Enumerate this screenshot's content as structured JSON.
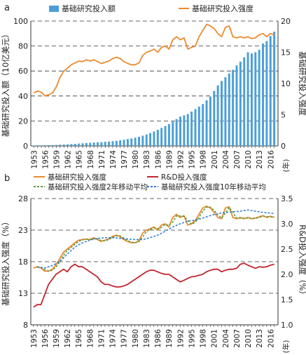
{
  "chart_data": [
    {
      "panel": "a",
      "type": "bar+line",
      "x_label": "(年)",
      "y_left_label": "基础研究投入额（10亿美元）",
      "y_right_label": "基础研究投入强度",
      "y_left_range": [
        0,
        100
      ],
      "y_left_ticks": [
        0,
        20,
        40,
        60,
        80,
        100
      ],
      "y_right_range": [
        0,
        20
      ],
      "y_right_ticks": [
        0,
        5,
        10,
        15,
        20
      ],
      "x_ticks": [
        "1953",
        "1956",
        "1959",
        "1962",
        "1965",
        "1968",
        "1971",
        "1974",
        "1977",
        "1980",
        "1983",
        "1986",
        "1989",
        "1992",
        "1995",
        "1998",
        "2001",
        "2004",
        "2007",
        "2010",
        "2013",
        "2016"
      ],
      "grid": "horizontal dashed",
      "legend_position": "top",
      "legend": [
        "基础研究投入额",
        "基础研究投入强度"
      ],
      "colors": {
        "bars": "#4a9fd8",
        "line": "#ec8a2e"
      },
      "series": [
        {
          "name": "基础研究投入额",
          "kind": "bar",
          "axis": "left",
          "x": [
            1953,
            1954,
            1955,
            1956,
            1957,
            1958,
            1959,
            1960,
            1961,
            1962,
            1963,
            1964,
            1965,
            1966,
            1967,
            1968,
            1969,
            1970,
            1971,
            1972,
            1973,
            1974,
            1975,
            1976,
            1977,
            1978,
            1979,
            1980,
            1981,
            1982,
            1983,
            1984,
            1985,
            1986,
            1987,
            1988,
            1989,
            1990,
            1991,
            1992,
            1993,
            1994,
            1995,
            1996,
            1997,
            1998,
            1999,
            2000,
            2001,
            2002,
            2003,
            2004,
            2005,
            2006,
            2007,
            2008,
            2009,
            2010,
            2011,
            2012,
            2013,
            2014,
            2015,
            2016,
            2017
          ],
          "values": [
            0.3,
            0.4,
            0.4,
            0.5,
            0.6,
            0.7,
            0.8,
            1.0,
            1.1,
            1.3,
            1.5,
            1.7,
            1.9,
            2.1,
            2.3,
            2.5,
            2.7,
            2.9,
            3.0,
            3.3,
            3.5,
            3.8,
            4.1,
            4.5,
            4.9,
            5.5,
            6.0,
            6.6,
            7.3,
            8.2,
            9.2,
            10.3,
            11.5,
            12.9,
            14.4,
            15.9,
            17.5,
            19.5,
            21.5,
            23.5,
            24.5,
            25.5,
            27.5,
            29.5,
            31.5,
            33.5,
            36.5,
            39.5,
            44.0,
            48.5,
            52.0,
            55.0,
            58.0,
            61.0,
            64.5,
            67.5,
            71.0,
            75.0,
            74.0,
            75.0,
            77.0,
            82.0,
            84.0,
            88.0,
            91.5
          ]
        },
        {
          "name": "基础研究投入强度",
          "kind": "line",
          "axis": "right",
          "x": [
            1953,
            1954,
            1955,
            1956,
            1957,
            1958,
            1959,
            1960,
            1961,
            1962,
            1963,
            1964,
            1965,
            1966,
            1967,
            1968,
            1969,
            1970,
            1971,
            1972,
            1973,
            1974,
            1975,
            1976,
            1977,
            1978,
            1979,
            1980,
            1981,
            1982,
            1983,
            1984,
            1985,
            1986,
            1987,
            1988,
            1989,
            1990,
            1991,
            1992,
            1993,
            1994,
            1995,
            1996,
            1997,
            1998,
            1999,
            2000,
            2001,
            2002,
            2003,
            2004,
            2005,
            2006,
            2007,
            2008,
            2009,
            2010,
            2011,
            2012,
            2013,
            2014,
            2015,
            2016,
            2017
          ],
          "values": [
            8.5,
            8.8,
            8.6,
            8.0,
            8.2,
            8.5,
            9.5,
            11.0,
            12.0,
            12.5,
            13.0,
            13.3,
            13.6,
            13.5,
            13.8,
            13.6,
            13.8,
            13.5,
            13.2,
            13.4,
            13.6,
            14.0,
            14.2,
            14.0,
            13.5,
            13.2,
            13.0,
            13.0,
            13.3,
            14.5,
            15.0,
            15.2,
            15.5,
            15.0,
            15.8,
            16.0,
            15.5,
            17.0,
            17.5,
            17.0,
            17.3,
            15.5,
            15.8,
            16.0,
            17.5,
            18.5,
            19.5,
            19.2,
            18.8,
            18.0,
            17.5,
            19.0,
            19.2,
            17.5,
            17.3,
            17.5,
            17.3,
            17.5,
            17.2,
            17.3,
            17.8,
            18.0,
            17.5,
            18.0,
            17.8
          ]
        }
      ]
    },
    {
      "panel": "b",
      "type": "line",
      "x_label": "(年)",
      "y_left_label": "基础研究投入强度（%）",
      "y_right_label": "R&D投入强度（%）",
      "y_left_range": [
        8,
        28
      ],
      "y_left_ticks": [
        8,
        13,
        18,
        23,
        28
      ],
      "y_right_range": [
        1.0,
        3.5
      ],
      "y_right_ticks": [
        1.0,
        1.5,
        2.0,
        2.5,
        3.0,
        3.5
      ],
      "x_ticks": [
        "1953",
        "1956",
        "1959",
        "1962",
        "1965",
        "1968",
        "1971",
        "1974",
        "1977",
        "1980",
        "1983",
        "1986",
        "1989",
        "1992",
        "1995",
        "1998",
        "2001",
        "2004",
        "2007",
        "2010",
        "2013",
        "2016"
      ],
      "grid": "horizontal dashed",
      "legend_position": "top",
      "legend": [
        "基础研究投入强度",
        "R&D投入强度",
        "基础研究投入强度2年移动平均",
        "基础研究投入强度10年移动平均"
      ],
      "colors": {
        "intensity": "#ec8a2e",
        "rd": "#c0262d",
        "ma2": "#5b9a3a",
        "ma10": "#2f7bd0"
      },
      "series": [
        {
          "name": "基础研究投入强度",
          "axis": "left",
          "x": [
            1953,
            1954,
            1955,
            1956,
            1957,
            1958,
            1959,
            1960,
            1961,
            1962,
            1963,
            1964,
            1965,
            1966,
            1967,
            1968,
            1969,
            1970,
            1971,
            1972,
            1973,
            1974,
            1975,
            1976,
            1977,
            1978,
            1979,
            1980,
            1981,
            1982,
            1983,
            1984,
            1985,
            1986,
            1987,
            1988,
            1989,
            1990,
            1991,
            1992,
            1993,
            1994,
            1995,
            1996,
            1997,
            1998,
            1999,
            2000,
            2001,
            2002,
            2003,
            2004,
            2005,
            2006,
            2007,
            2008,
            2009,
            2010,
            2011,
            2012,
            2013,
            2014,
            2015,
            2016,
            2017
          ],
          "values": [
            17.0,
            17.2,
            17.0,
            16.5,
            16.5,
            16.8,
            17.5,
            18.5,
            19.5,
            20.0,
            20.5,
            21.0,
            21.4,
            21.5,
            21.6,
            21.5,
            21.8,
            21.5,
            21.2,
            21.4,
            21.6,
            22.0,
            22.2,
            22.0,
            21.5,
            21.2,
            21.0,
            21.0,
            21.3,
            22.5,
            23.0,
            23.2,
            23.5,
            23.0,
            23.8,
            24.0,
            23.5,
            25.0,
            25.5,
            25.0,
            25.3,
            23.8,
            24.0,
            24.5,
            25.5,
            26.5,
            26.8,
            26.5,
            25.8,
            25.0,
            24.8,
            26.5,
            26.7,
            25.0,
            24.8,
            25.0,
            24.8,
            25.0,
            24.8,
            24.9,
            25.1,
            25.3,
            25.0,
            25.2,
            25.0
          ]
        },
        {
          "name": "R&D投入强度",
          "axis": "right",
          "x": [
            1953,
            1954,
            1955,
            1956,
            1957,
            1958,
            1959,
            1960,
            1961,
            1962,
            1963,
            1964,
            1965,
            1966,
            1967,
            1968,
            1969,
            1970,
            1971,
            1972,
            1973,
            1974,
            1975,
            1976,
            1977,
            1978,
            1979,
            1980,
            1981,
            1982,
            1983,
            1984,
            1985,
            1986,
            1987,
            1988,
            1989,
            1990,
            1991,
            1992,
            1993,
            1994,
            1995,
            1996,
            1997,
            1998,
            1999,
            2000,
            2001,
            2002,
            2003,
            2004,
            2005,
            2006,
            2007,
            2008,
            2009,
            2010,
            2011,
            2012,
            2013,
            2014,
            2015,
            2016,
            2017
          ],
          "values": [
            1.35,
            1.4,
            1.4,
            1.6,
            1.8,
            1.9,
            2.0,
            2.05,
            2.1,
            2.05,
            2.15,
            2.2,
            2.15,
            2.15,
            2.1,
            2.05,
            2.0,
            1.95,
            1.85,
            1.8,
            1.8,
            1.77,
            1.75,
            1.75,
            1.77,
            1.8,
            1.85,
            1.9,
            1.95,
            2.0,
            2.05,
            2.08,
            2.08,
            2.05,
            2.02,
            2.0,
            2.0,
            1.95,
            1.9,
            1.85,
            1.88,
            1.92,
            1.95,
            1.96,
            1.98,
            2.0,
            2.05,
            2.08,
            2.1,
            2.1,
            2.05,
            2.08,
            2.1,
            2.1,
            2.12,
            2.2,
            2.22,
            2.18,
            2.15,
            2.12,
            2.15,
            2.14,
            2.15,
            2.18,
            2.2
          ]
        },
        {
          "name": "基础研究投入强度2年移动平均",
          "axis": "left",
          "x": [
            1954,
            1955,
            1956,
            1957,
            1958,
            1959,
            1960,
            1961,
            1962,
            1963,
            1964,
            1965,
            1966,
            1967,
            1968,
            1969,
            1970,
            1971,
            1972,
            1973,
            1974,
            1975,
            1976,
            1977,
            1978,
            1979,
            1980,
            1981,
            1982,
            1983,
            1984,
            1985,
            1986,
            1987,
            1988,
            1989,
            1990,
            1991,
            1992,
            1993,
            1994,
            1995,
            1996,
            1997,
            1998,
            1999,
            2000,
            2001,
            2002,
            2003,
            2004,
            2005,
            2006,
            2007,
            2008,
            2009,
            2010,
            2011,
            2012,
            2013,
            2014,
            2015,
            2016,
            2017
          ],
          "values": [
            17.1,
            17.1,
            16.75,
            16.5,
            16.65,
            17.15,
            18.0,
            19.0,
            19.75,
            20.25,
            20.75,
            21.2,
            21.45,
            21.55,
            21.55,
            21.65,
            21.65,
            21.35,
            21.3,
            21.5,
            21.8,
            22.1,
            22.1,
            21.75,
            21.35,
            21.1,
            21.0,
            21.15,
            21.9,
            22.75,
            23.1,
            23.35,
            23.25,
            23.4,
            23.9,
            23.75,
            24.25,
            25.25,
            25.25,
            25.15,
            24.55,
            23.9,
            24.25,
            25.0,
            26.0,
            26.65,
            26.65,
            26.15,
            25.4,
            24.9,
            25.65,
            26.6,
            25.85,
            24.9,
            24.9,
            24.9,
            24.9,
            24.9,
            24.85,
            25.0,
            25.2,
            25.15,
            25.1,
            25.1
          ]
        },
        {
          "name": "基础研究投入强度10年移动平均",
          "axis": "left",
          "x": [
            1954,
            1956,
            1958,
            1960,
            1962,
            1964,
            1966,
            1968,
            1970,
            1972,
            1974,
            1976,
            1978,
            1980,
            1982,
            1984,
            1986,
            1988,
            1990,
            1992,
            1994,
            1996,
            1998,
            2000,
            2002,
            2004,
            2006,
            2008,
            2010,
            2012,
            2014,
            2016,
            2017
          ],
          "values": [
            17.2,
            17.0,
            17.4,
            18.0,
            19.2,
            20.3,
            21.0,
            21.4,
            21.7,
            21.8,
            21.8,
            21.7,
            21.6,
            21.5,
            21.5,
            21.8,
            22.2,
            22.8,
            23.5,
            24.0,
            24.4,
            24.6,
            24.9,
            25.3,
            25.6,
            25.8,
            25.9,
            26.0,
            26.2,
            26.0,
            25.8,
            25.7,
            25.6
          ]
        }
      ]
    }
  ]
}
